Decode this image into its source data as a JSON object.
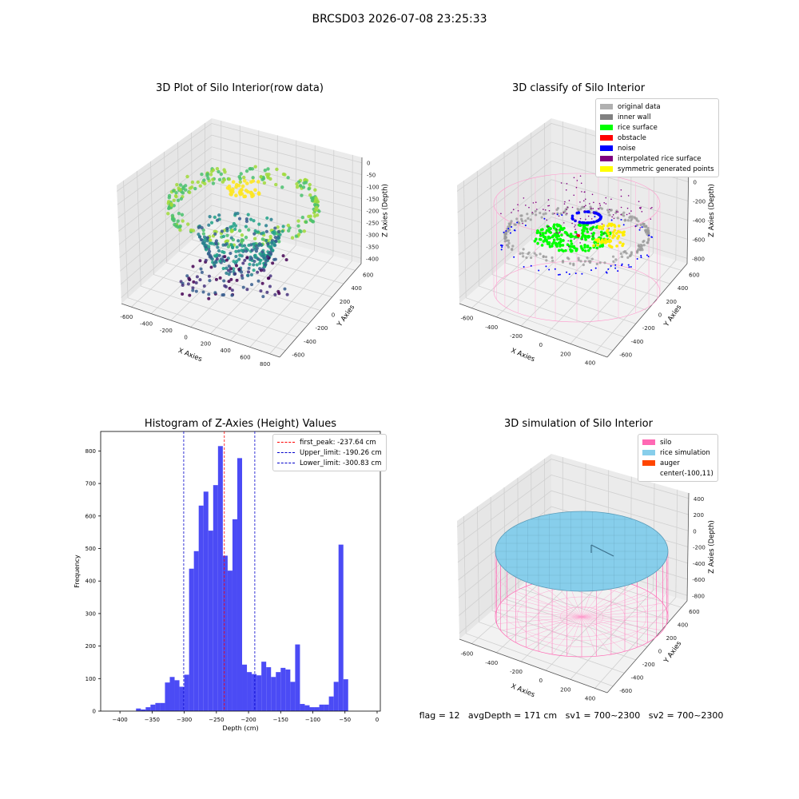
{
  "suptitle": "BRCSD03 2026-07-08 23:25:33",
  "panel1": {
    "title": "3D Plot of Silo Interior(row data)",
    "xlabel": "X Axies",
    "ylabel": "Y Axies",
    "zlabel": "Z Axies (Depth)",
    "xticks": [
      "-600",
      "-400",
      "-200",
      "0",
      "200",
      "400",
      "600",
      "800"
    ],
    "yticks": [
      "-600",
      "-400",
      "-200",
      "0",
      "200",
      "400",
      "600"
    ],
    "zticks": [
      "0",
      "-50",
      "-100",
      "-150",
      "-200",
      "-250",
      "-300",
      "-350",
      "-400"
    ]
  },
  "panel2": {
    "title": "3D classify of Silo Interior",
    "xlabel": "X Axies",
    "ylabel": "Y Axies",
    "zlabel": "Z Axies (Depth)",
    "xticks": [
      "-600",
      "-400",
      "-200",
      "0",
      "200",
      "400"
    ],
    "yticks": [
      "-600",
      "-400",
      "-200",
      "0",
      "200",
      "400",
      "600"
    ],
    "zticks": [
      "200",
      "0",
      "-200",
      "-400",
      "-600",
      "-800"
    ],
    "legend": [
      {
        "label": "original data",
        "color": "#b0b0b0"
      },
      {
        "label": "inner wall",
        "color": "#808080"
      },
      {
        "label": "rice surface",
        "color": "#00ff00"
      },
      {
        "label": "obstacle",
        "color": "#ff0000"
      },
      {
        "label": "noise",
        "color": "#0000ff"
      },
      {
        "label": "interpolated rice surface",
        "color": "#800080"
      },
      {
        "label": "symmetric generated points",
        "color": "#ffff00"
      }
    ]
  },
  "panel4": {
    "title": "3D simulation of Silo Interior",
    "xlabel": "X Axies",
    "ylabel": "Y Axies",
    "zlabel": "Z Axies (Depth)",
    "xticks": [
      "-600",
      "-400",
      "-200",
      "0",
      "200",
      "400"
    ],
    "yticks": [
      "-600",
      "-400",
      "-200",
      "0",
      "200",
      "400",
      "600"
    ],
    "zticks": [
      "400",
      "200",
      "0",
      "-200",
      "-400",
      "-600",
      "-800"
    ],
    "legend": [
      {
        "label": "silo",
        "color": "#ff69b4"
      },
      {
        "label": "rice simulation",
        "color": "#87ceeb"
      },
      {
        "label": "auger",
        "color": "#ff4500"
      },
      {
        "label": "center(-100,11)",
        "color": ""
      }
    ]
  },
  "status": "flag = 12   avgDepth = 171 cm   sv1 = 700~2300   sv2 = 700~2300",
  "chart_data": [
    {
      "type": "bar",
      "title": "Histogram of Z-Axies (Height) Values",
      "xlabel": "Depth (cm)",
      "ylabel": "Frequency",
      "xlim": [
        -430,
        5
      ],
      "ylim": [
        0,
        860
      ],
      "xticks": [
        -400,
        -350,
        -300,
        -250,
        -200,
        -150,
        -100,
        -50,
        0
      ],
      "yticks": [
        0,
        100,
        200,
        300,
        400,
        500,
        600,
        700,
        800
      ],
      "bin_width": 7.5,
      "bins_start": [
        -375,
        -367.5,
        -360,
        -352.5,
        -345,
        -337.5,
        -330,
        -322.5,
        -315,
        -307.5,
        -300,
        -292.5,
        -285,
        -277.5,
        -270,
        -262.5,
        -255,
        -247.5,
        -240,
        -232.5,
        -225,
        -217.5,
        -210,
        -202.5,
        -195,
        -187.5,
        -180,
        -172.5,
        -165,
        -157.5,
        -150,
        -142.5,
        -135,
        -127.5,
        -120,
        -112.5,
        -105,
        -97.5,
        -90,
        -82.5,
        -75,
        -67.5,
        -60,
        -52.5,
        -45,
        -37.5,
        -30
      ],
      "values": [
        8,
        5,
        12,
        20,
        25,
        25,
        88,
        105,
        95,
        75,
        112,
        438,
        492,
        632,
        675,
        555,
        695,
        815,
        478,
        432,
        590,
        778,
        143,
        120,
        114,
        110,
        152,
        135,
        105,
        120,
        133,
        128,
        90,
        205,
        22,
        18,
        12,
        12,
        20,
        20,
        45,
        90,
        512,
        98,
        0,
        0,
        0
      ],
      "lines": [
        {
          "label": "first_peak: -237.64 cm",
          "x": -237.64,
          "color": "#ff0000"
        },
        {
          "label": "Upper_limit: -190.26 cm",
          "x": -190.26,
          "color": "#0000cc"
        },
        {
          "label": "Lower_limit: -300.83 cm",
          "x": -300.83,
          "color": "#0000cc"
        }
      ],
      "bar_color": "#4b4bf5"
    }
  ]
}
